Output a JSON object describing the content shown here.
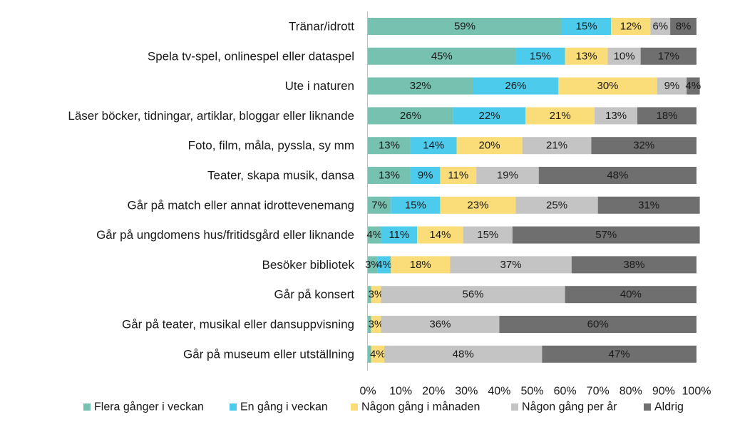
{
  "chart_data": {
    "type": "bar",
    "orientation": "horizontal",
    "stacked": true,
    "categories": [
      "Tränar/idrott",
      "Spela tv-spel, onlinespel eller dataspel",
      "Ute i naturen",
      "Läser böcker, tidningar, artiklar, bloggar eller liknande",
      "Foto, film, måla, pyssla, sy mm",
      "Teater, skapa musik, dansa",
      "Går på match eller annat idrottevenemang",
      "Går på ungdomens hus/fritidsgård eller liknande",
      "Besöker bibliotek",
      "Går på konsert",
      "Går på teater, musikal eller dansuppvisning",
      "Går på museum eller utställning"
    ],
    "series": [
      {
        "name": "Flera gånger i veckan",
        "color": "#76c1b0",
        "values": [
          59,
          45,
          32,
          26,
          13,
          13,
          7,
          4,
          3,
          1,
          1,
          1
        ]
      },
      {
        "name": "En gång i veckan",
        "color": "#4dcbec",
        "values": [
          15,
          15,
          26,
          22,
          14,
          9,
          15,
          11,
          4,
          0,
          0,
          0
        ]
      },
      {
        "name": "Någon gång i månaden",
        "color": "#fadc78",
        "values": [
          12,
          13,
          30,
          21,
          20,
          11,
          23,
          14,
          18,
          3,
          3,
          4
        ]
      },
      {
        "name": "Någon gång per år",
        "color": "#c4c4c4",
        "values": [
          6,
          10,
          9,
          13,
          21,
          19,
          25,
          15,
          37,
          56,
          36,
          48
        ]
      },
      {
        "name": "Aldrig",
        "color": "#6f6f6f",
        "values": [
          8,
          17,
          4,
          18,
          32,
          48,
          31,
          57,
          38,
          40,
          60,
          47
        ]
      }
    ],
    "data_labels": [
      [
        "59%",
        "15%",
        "12%",
        "6%",
        "8%"
      ],
      [
        "45%",
        "15%",
        "13%",
        "10%",
        "17%"
      ],
      [
        "32%",
        "26%",
        "30%",
        "9%",
        "4%"
      ],
      [
        "26%",
        "22%",
        "21%",
        "13%",
        "18%"
      ],
      [
        "13%",
        "14%",
        "20%",
        "21%",
        "32%"
      ],
      [
        "13%",
        "9%",
        "11%",
        "19%",
        "48%"
      ],
      [
        "7%",
        "15%",
        "23%",
        "25%",
        "31%"
      ],
      [
        "4%",
        "11%",
        "14%",
        "15%",
        "57%"
      ],
      [
        "3%",
        "4%",
        "18%",
        "37%",
        "38%"
      ],
      [
        "",
        "",
        "3%",
        "56%",
        "40%"
      ],
      [
        "",
        "",
        "3%",
        "36%",
        "60%"
      ],
      [
        "",
        "",
        "4%",
        "48%",
        "47%"
      ]
    ],
    "x_ticks": [
      "0%",
      "10%",
      "20%",
      "30%",
      "40%",
      "50%",
      "60%",
      "70%",
      "80%",
      "90%",
      "100%"
    ],
    "xlim": [
      0,
      100
    ],
    "legend_position": "bottom",
    "grid": false,
    "title": "",
    "xlabel": "",
    "ylabel": ""
  }
}
